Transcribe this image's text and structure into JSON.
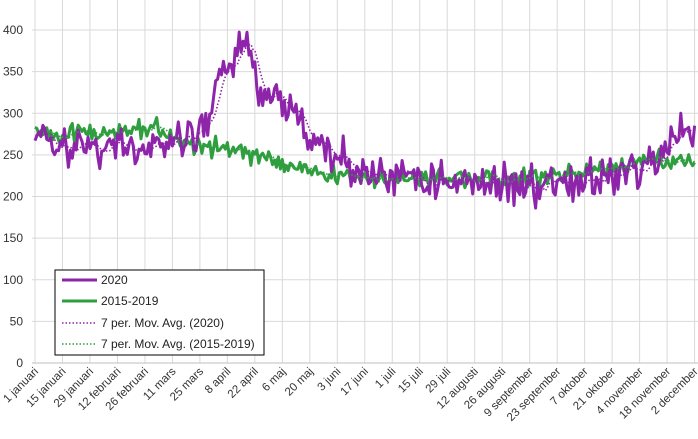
{
  "chart_data": {
    "type": "line",
    "title": "",
    "xlabel": "",
    "ylabel": "",
    "ylim": [
      0,
      400
    ],
    "yticks": [
      0,
      50,
      100,
      150,
      200,
      250,
      300,
      350,
      400
    ],
    "grid": true,
    "legend_position": "bottom-left",
    "x_tick_labels": [
      "1 januari",
      "15 januari",
      "29 januari",
      "12 februari",
      "26 februari",
      "11 mars",
      "25 mars",
      "8 april",
      "22 april",
      "6 maj",
      "20 maj",
      "3 juni",
      "17 juni",
      "1 juli",
      "15 juli",
      "29 juli",
      "12 augusti",
      "26 augusti",
      "9 september",
      "23 september",
      "7 oktober",
      "21 oktober",
      "4 november",
      "18 november",
      "2 december"
    ],
    "x_tick_day_index": [
      0,
      14,
      28,
      42,
      56,
      70,
      84,
      98,
      112,
      126,
      140,
      154,
      168,
      182,
      196,
      210,
      224,
      238,
      252,
      266,
      280,
      294,
      308,
      322,
      336
    ],
    "series": [
      {
        "name": "2020",
        "color": "#8E24AA",
        "style": "solid",
        "anchors": [
          [
            0,
            275
          ],
          [
            7,
            262
          ],
          [
            14,
            262
          ],
          [
            21,
            258
          ],
          [
            28,
            255
          ],
          [
            35,
            260
          ],
          [
            42,
            258
          ],
          [
            49,
            258
          ],
          [
            56,
            255
          ],
          [
            63,
            258
          ],
          [
            70,
            265
          ],
          [
            77,
            270
          ],
          [
            84,
            275
          ],
          [
            88,
            290
          ],
          [
            92,
            325
          ],
          [
            95,
            350
          ],
          [
            98,
            360
          ],
          [
            101,
            358
          ],
          [
            105,
            375
          ],
          [
            108,
            385
          ],
          [
            112,
            345
          ],
          [
            116,
            328
          ],
          [
            120,
            315
          ],
          [
            124,
            320
          ],
          [
            128,
            315
          ],
          [
            132,
            300
          ],
          [
            136,
            285
          ],
          [
            140,
            270
          ],
          [
            144,
            262
          ],
          [
            150,
            250
          ],
          [
            158,
            240
          ],
          [
            168,
            230
          ],
          [
            182,
            225
          ],
          [
            196,
            222
          ],
          [
            210,
            220
          ],
          [
            224,
            218
          ],
          [
            238,
            215
          ],
          [
            252,
            215
          ],
          [
            266,
            220
          ],
          [
            280,
            218
          ],
          [
            294,
            225
          ],
          [
            308,
            235
          ],
          [
            318,
            245
          ],
          [
            325,
            255
          ],
          [
            330,
            270
          ],
          [
            336,
            280
          ]
        ],
        "noise": 18
      },
      {
        "name": "2015-2019",
        "color": "#2E9E3E",
        "style": "solid",
        "anchors": [
          [
            0,
            278
          ],
          [
            14,
            275
          ],
          [
            28,
            278
          ],
          [
            42,
            275
          ],
          [
            56,
            282
          ],
          [
            63,
            280
          ],
          [
            70,
            270
          ],
          [
            84,
            262
          ],
          [
            98,
            258
          ],
          [
            112,
            250
          ],
          [
            126,
            238
          ],
          [
            140,
            230
          ],
          [
            154,
            225
          ],
          [
            168,
            222
          ],
          [
            182,
            222
          ],
          [
            196,
            220
          ],
          [
            210,
            222
          ],
          [
            224,
            220
          ],
          [
            238,
            220
          ],
          [
            252,
            222
          ],
          [
            266,
            225
          ],
          [
            280,
            230
          ],
          [
            294,
            235
          ],
          [
            308,
            240
          ],
          [
            322,
            242
          ],
          [
            336,
            238
          ]
        ],
        "noise": 8
      },
      {
        "name": "7 per. Mov. Avg. (2020)",
        "color": "#8E24AA",
        "style": "dotted",
        "moving_average_of": "2020",
        "period": 7
      },
      {
        "name": "7 per. Mov. Avg. (2015-2019)",
        "color": "#2E9E3E",
        "style": "dotted",
        "moving_average_of": "2015-2019",
        "period": 7
      }
    ],
    "legend": [
      "2020",
      "2015-2019",
      "7 per. Mov. Avg. (2020)",
      "7 per. Mov. Avg. (2015-2019)"
    ]
  }
}
